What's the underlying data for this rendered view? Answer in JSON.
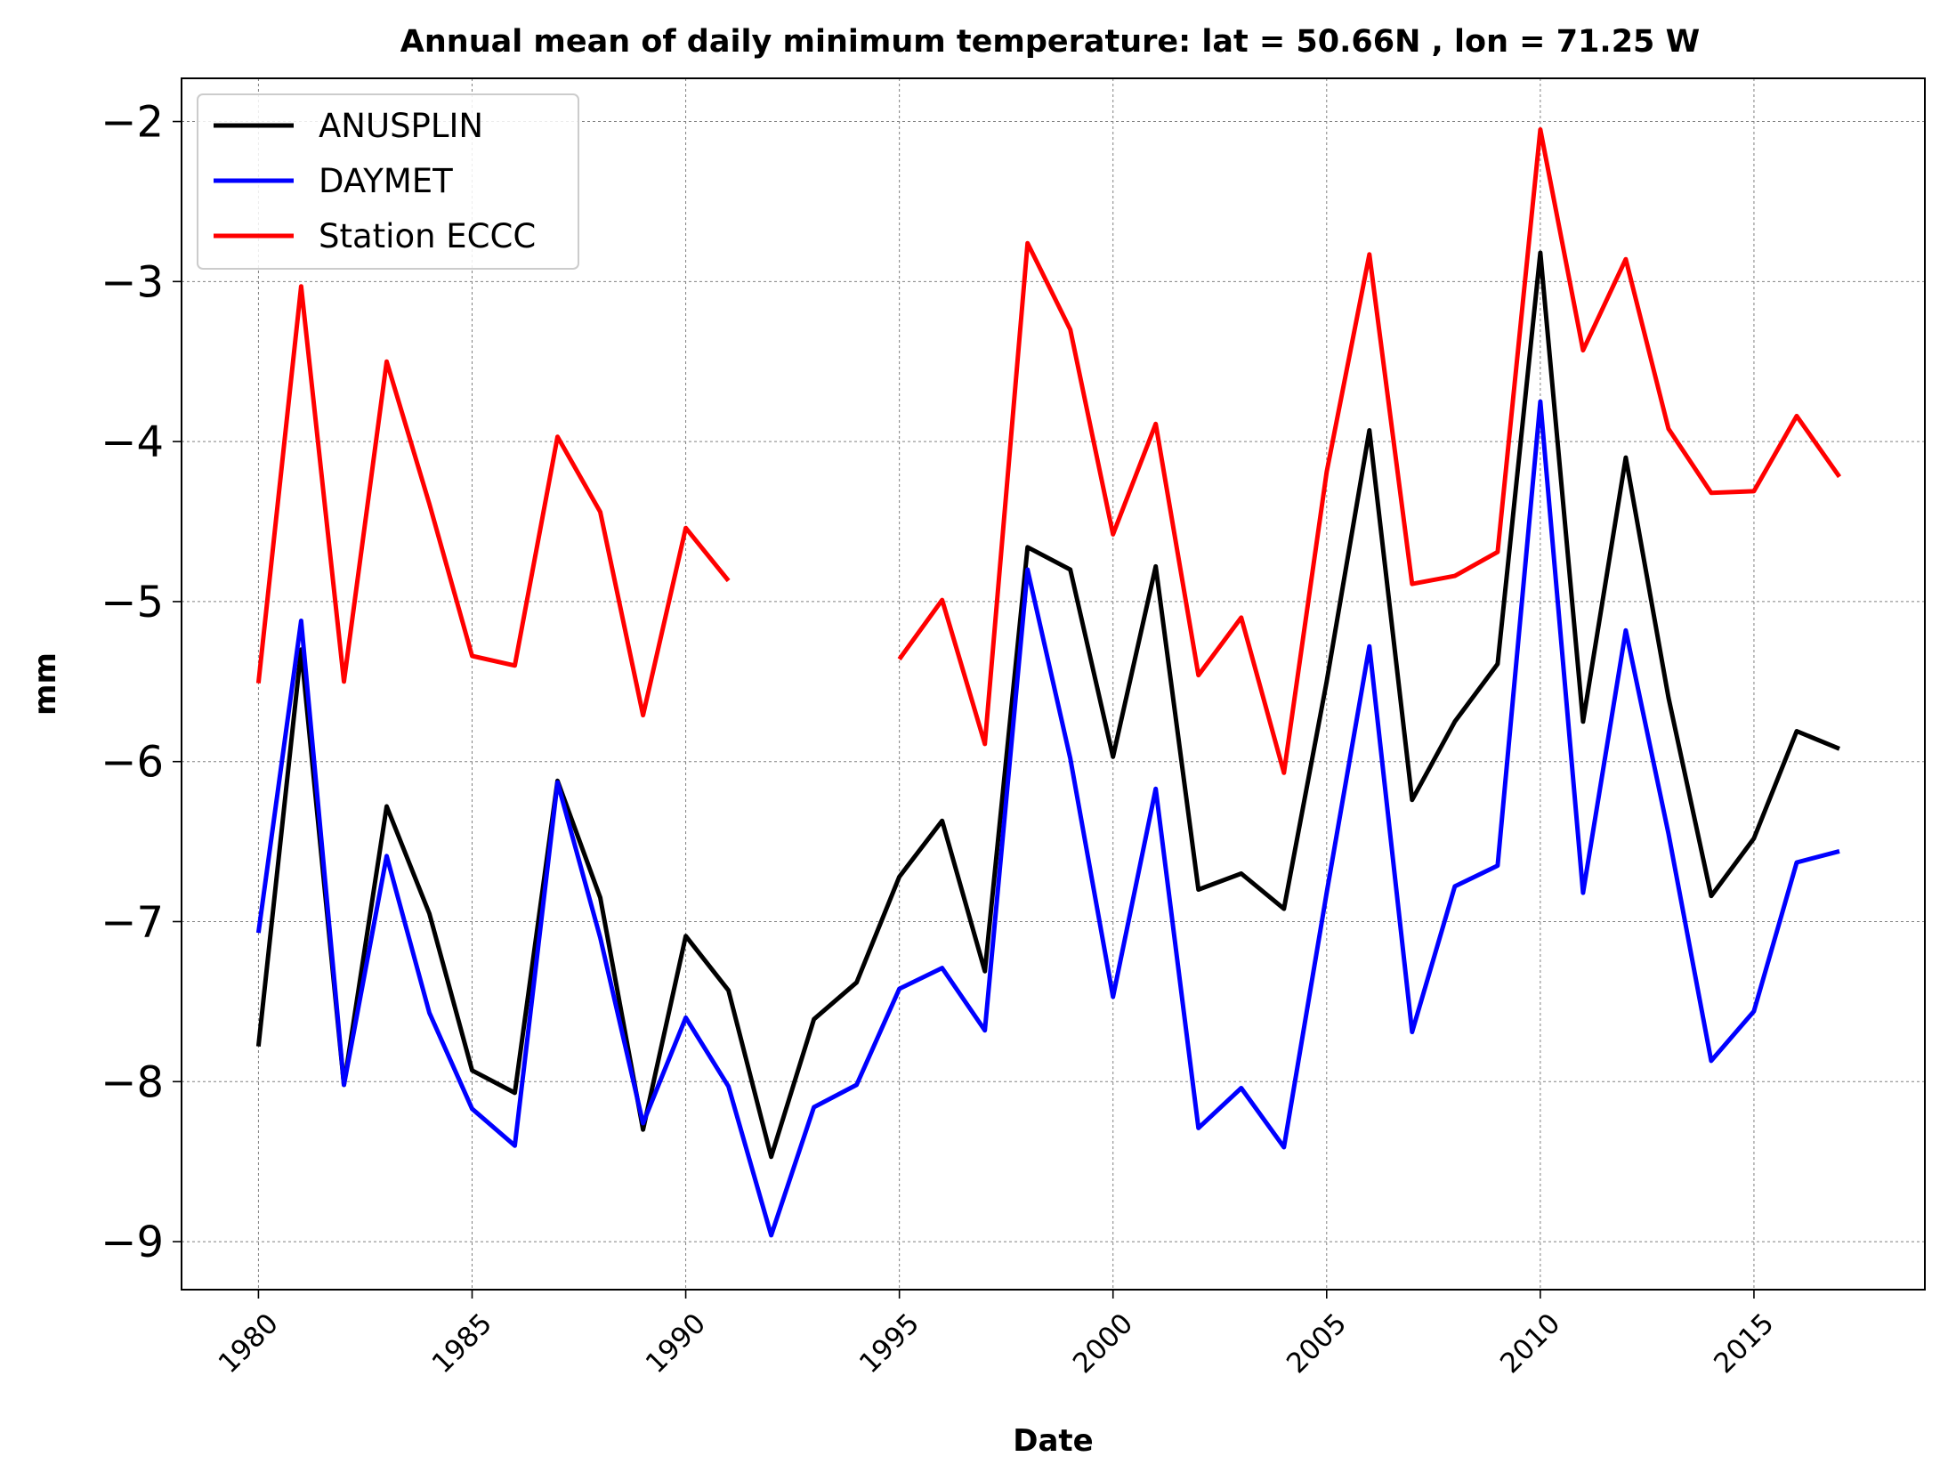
{
  "chart_data": {
    "type": "line",
    "title": "Annual mean of daily minimum temperature:  lat = 50.66N , lon = 71.25 W",
    "xlabel": "Date",
    "ylabel": "mm",
    "xlim": [
      1978.2,
      2019.0
    ],
    "ylim": [
      -9.3,
      -1.73
    ],
    "xticks": [
      1980,
      1985,
      1990,
      1995,
      2000,
      2005,
      2010,
      2015
    ],
    "xtick_labels": [
      "1980",
      "1985",
      "1990",
      "1995",
      "2000",
      "2005",
      "2010",
      "2015"
    ],
    "yticks": [
      -9,
      -8,
      -7,
      -6,
      -5,
      -4,
      -3,
      -2
    ],
    "ytick_labels": [
      "−9",
      "−8",
      "−7",
      "−6",
      "−5",
      "−4",
      "−3",
      "−2"
    ],
    "grid": true,
    "legend_position": "top-left",
    "x": [
      1980,
      1981,
      1982,
      1983,
      1984,
      1985,
      1986,
      1987,
      1988,
      1989,
      1990,
      1991,
      1992,
      1993,
      1994,
      1995,
      1996,
      1997,
      1998,
      1999,
      2000,
      2001,
      2002,
      2003,
      2004,
      2005,
      2006,
      2007,
      2008,
      2009,
      2010,
      2011,
      2012,
      2013,
      2014,
      2015,
      2016,
      2017
    ],
    "series": [
      {
        "name": "ANUSPLIN",
        "color": "#000000",
        "values": [
          -7.78,
          -5.3,
          -8.02,
          -6.28,
          -6.95,
          -7.93,
          -8.07,
          -6.12,
          -6.85,
          -8.3,
          -7.09,
          -7.43,
          -8.47,
          -7.61,
          -7.38,
          -6.72,
          -6.37,
          -7.31,
          -4.66,
          -4.8,
          -5.97,
          -4.78,
          -6.8,
          -6.7,
          -6.92,
          -5.5,
          -3.93,
          -6.24,
          -5.75,
          -5.39,
          -2.82,
          -5.75,
          -4.1,
          -5.6,
          -6.84,
          -6.48,
          -5.81,
          -5.92
        ]
      },
      {
        "name": "DAYMET",
        "color": "#0000ff",
        "values": [
          -7.07,
          -5.12,
          -8.02,
          -6.59,
          -7.57,
          -8.17,
          -8.4,
          -6.13,
          -7.1,
          -8.26,
          -7.6,
          -8.03,
          -8.96,
          -8.16,
          -8.02,
          -7.42,
          -7.29,
          -7.68,
          -4.8,
          -5.98,
          -7.47,
          -6.17,
          -8.29,
          -8.04,
          -8.41,
          -6.82,
          -5.28,
          -7.69,
          -6.78,
          -6.65,
          -3.75,
          -6.82,
          -5.18,
          -6.45,
          -7.87,
          -7.56,
          -6.63,
          -6.56
        ]
      },
      {
        "name": "Station ECCC",
        "color": "#ff0000",
        "values": [
          -5.51,
          -3.03,
          -5.5,
          -3.5,
          -4.39,
          -5.34,
          -5.4,
          -3.97,
          -4.44,
          -5.71,
          -4.54,
          -4.87,
          null,
          null,
          null,
          -5.36,
          -4.99,
          -5.89,
          -2.76,
          -3.3,
          -4.58,
          -3.89,
          -5.46,
          -5.1,
          -6.07,
          -4.19,
          -2.83,
          -4.89,
          -4.84,
          -4.69,
          -2.05,
          -3.43,
          -2.86,
          -3.92,
          -4.32,
          -4.31,
          -3.84,
          -4.22
        ]
      }
    ]
  }
}
